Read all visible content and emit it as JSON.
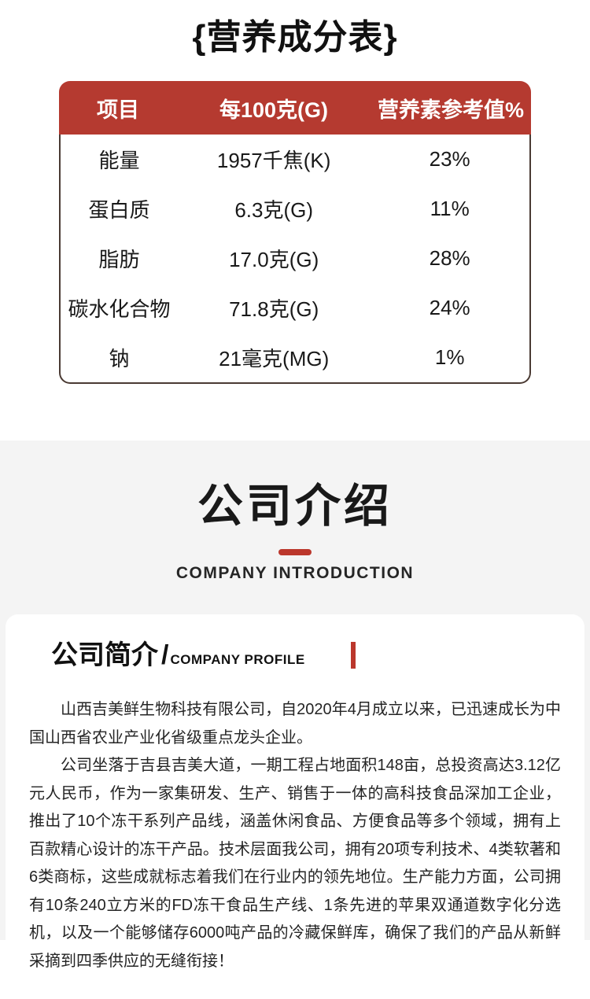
{
  "nutrition": {
    "title": "{营养成分表}",
    "headers": [
      "项目",
      "每100克(G)",
      "营养素参考值%"
    ],
    "rows": [
      {
        "item": "能量",
        "value": "1957千焦(K)",
        "nrv": "23%"
      },
      {
        "item": "蛋白质",
        "value": "6.3克(G)",
        "nrv": "11%"
      },
      {
        "item": "脂肪",
        "value": "17.0克(G)",
        "nrv": "28%"
      },
      {
        "item": "碳水化合物",
        "value": "71.8克(G)",
        "nrv": "24%"
      },
      {
        "item": "钠",
        "value": "21毫克(MG)",
        "nrv": "1%"
      }
    ]
  },
  "company": {
    "title": "公司介绍",
    "subtitle": "COMPANY INTRODUCTION",
    "profile": {
      "heading_cn": "公司简介",
      "heading_slash": "/",
      "heading_en": "COMPANY PROFILE",
      "paragraphs": [
        "山西吉美鲜生物科技有限公司，自2020年4月成立以来，已迅速成长为中国山西省农业产业化省级重点龙头企业。",
        "公司坐落于吉县吉美大道，一期工程占地面积148亩，总投资高达3.12亿元人民币，作为一家集研发、生产、销售于一体的高科技食品深加工企业，推出了10个冻干系列产品线，涵盖休闲食品、方便食品等多个领域，拥有上百款精心设计的冻干产品。技术层面我公司，拥有20项专利技术、4类软著和6类商标，这些成就标志着我们在行业内的领先地位。生产能力方面，公司拥有10条240立方米的FD冻干食品生产线、1条先进的苹果双通道数字化分选机，以及一个能够储存6000吨产品的冷藏保鲜库，确保了我们的产品从新鲜采摘到四季供应的无缝衔接！"
      ]
    }
  },
  "colors": {
    "accent_red": "#b53a30",
    "divider_red": "#bb372c",
    "table_border": "#4a3a33",
    "section_bg": "#f4f4f4"
  }
}
